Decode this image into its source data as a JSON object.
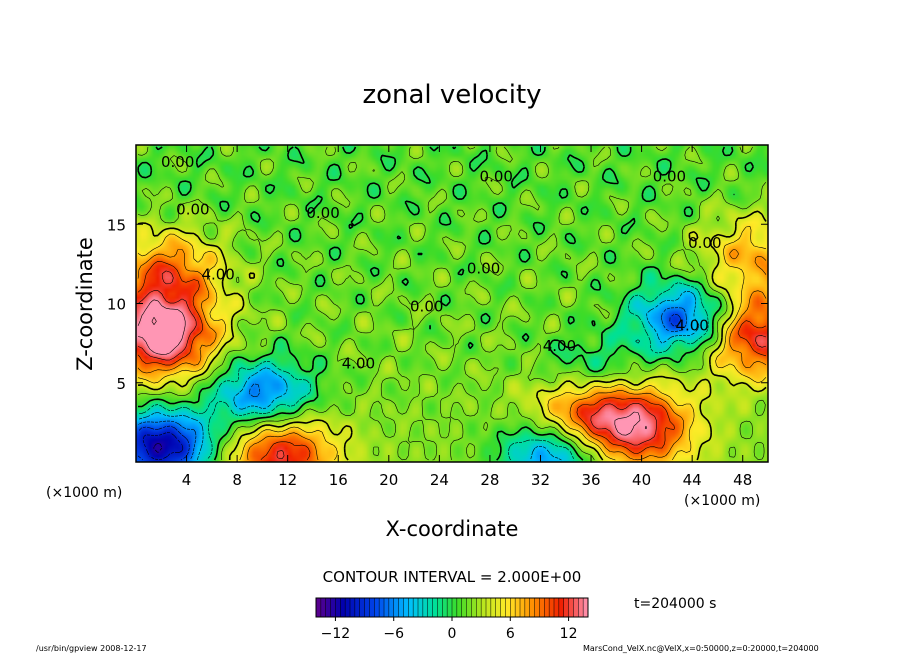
{
  "chart_data": {
    "type": "heatmap",
    "title": "zonal velocity",
    "xlabel": "X-coordinate",
    "ylabel": "Z-coordinate",
    "x_unit_label": "(×1000 m)",
    "y_unit_label": "(×1000 m)",
    "xlim": [
      0,
      50
    ],
    "ylim": [
      0,
      20
    ],
    "x_ticks": [
      4,
      8,
      12,
      16,
      20,
      24,
      28,
      32,
      36,
      40,
      44,
      48
    ],
    "y_ticks": [
      5,
      10,
      15
    ],
    "contour_interval_label": "CONTOUR INTERVAL = 2.000E+00",
    "time_label": "t=204000 s",
    "colorbar": {
      "min": -14,
      "max": 14,
      "ticks": [
        -12,
        -6,
        0,
        6,
        12
      ],
      "tick_labels": [
        "−12",
        "−6",
        "0",
        "6",
        "12"
      ]
    },
    "contour_labels": [
      {
        "text": "0.00",
        "x": 3.3,
        "z": 18.6
      },
      {
        "text": "0.00",
        "x": 4.5,
        "z": 15.6
      },
      {
        "text": "0.00",
        "x": 14.8,
        "z": 15.4
      },
      {
        "text": "0.00",
        "x": 28.5,
        "z": 17.7
      },
      {
        "text": "0.00",
        "x": 42.2,
        "z": 17.7
      },
      {
        "text": "0.00",
        "x": 45.0,
        "z": 13.5
      },
      {
        "text": "4.00",
        "x": 6.5,
        "z": 11.5
      },
      {
        "text": "4.00",
        "x": 17.6,
        "z": 5.9
      },
      {
        "text": "4.00",
        "x": 33.5,
        "z": 7.0
      },
      {
        "text": "4.00",
        "x": 44.0,
        "z": 8.3
      },
      {
        "text": "0.00",
        "x": 23.0,
        "z": 9.5
      },
      {
        "text": "0.00",
        "x": 27.5,
        "z": 11.9
      }
    ],
    "features": [
      {
        "label": "max",
        "x": 2.0,
        "z": 8.0,
        "value": 14
      },
      {
        "label": "max",
        "x": 2.5,
        "z": 12.0,
        "value": 8
      },
      {
        "label": "max",
        "x": 11.5,
        "z": 0.5,
        "value": 10
      },
      {
        "label": "max",
        "x": 40.0,
        "z": 2.2,
        "value": 10
      },
      {
        "label": "max",
        "x": 35.5,
        "z": 3.2,
        "value": 9
      },
      {
        "label": "max",
        "x": 49.0,
        "z": 8.0,
        "value": 11
      },
      {
        "label": "max",
        "x": 49.0,
        "z": 13.0,
        "value": 6
      },
      {
        "label": "min",
        "x": 2.0,
        "z": 1.0,
        "value": -14
      },
      {
        "label": "min",
        "x": 10.0,
        "z": 4.2,
        "value": -9
      },
      {
        "label": "min",
        "x": 43.5,
        "z": 9.0,
        "value": -10
      },
      {
        "label": "min",
        "x": 33.0,
        "z": 0.5,
        "value": -9
      },
      {
        "label": "min",
        "x": 36.0,
        "z": 5.5,
        "value": -5
      }
    ]
  },
  "footer": {
    "left": "/usr/bin/gpview  2008-12-17",
    "right": "MarsCond_VelX.nc@VelX,x=0:50000,z=0:20000,t=204000"
  }
}
